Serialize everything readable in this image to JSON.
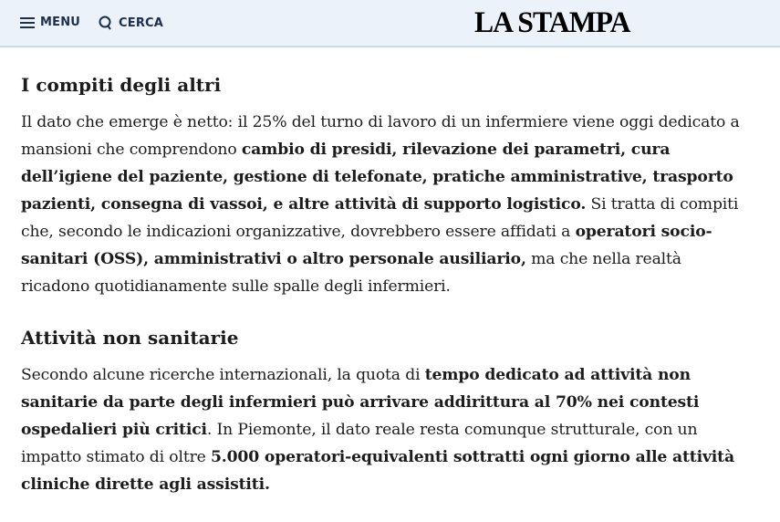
{
  "header": {
    "menu_label": "MENU",
    "search_label": "CERCA",
    "logo": "LA STAMPA"
  },
  "sections": [
    {
      "title": "I compiti degli altri",
      "parts": [
        {
          "t": "Il dato che emerge è netto: il 25% del turno di lavoro di un infermiere viene oggi dedicato a mansioni che comprendono "
        },
        {
          "b": "cambio di presidi, rilevazione dei parametri, cura dell’igiene del paziente, gestione di telefonate, pratiche amministrative, trasporto pazienti, consegna di vassoi, e altre attività di supporto logistico."
        },
        {
          "t": " Si tratta di compiti che, secondo le indicazioni organizzative, dovrebbero essere affidati a "
        },
        {
          "b": "operatori socio-sanitari (OSS), amministrativi o altro personale ausiliario,"
        },
        {
          "t": " ma che nella realtà ricadono quotidianamente sulle spalle degli infermieri."
        }
      ]
    },
    {
      "title": "Attività non sanitarie",
      "parts": [
        {
          "t": "Secondo alcune ricerche internazionali, la quota di "
        },
        {
          "b": "tempo dedicato ad attività non sanitarie da parte degli infermieri può arrivare addirittura al 70% nei contesti ospedalieri più critici"
        },
        {
          "t": ". In Piemonte, il dato reale resta comunque strutturale, con un impatto stimato di oltre "
        },
        {
          "b": "5.000 operatori-equivalenti sottratti ogni giorno alle attività cliniche dirette agli assistiti."
        }
      ]
    }
  ]
}
